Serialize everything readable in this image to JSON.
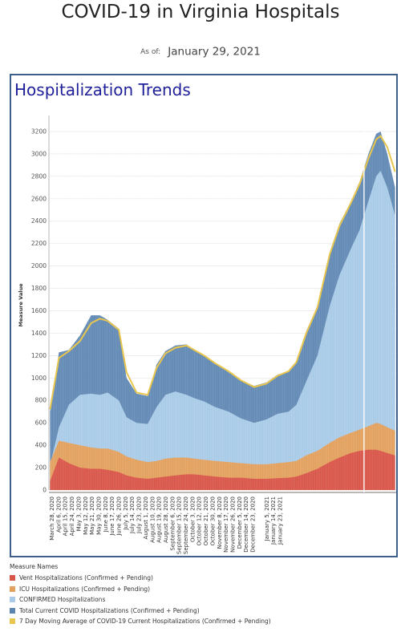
{
  "header": {
    "title": "COVID-19 in Virginia Hospitals",
    "as_of_label": "As of:",
    "as_of_date": "January 29, 2021"
  },
  "panel": {
    "title": "Hospitalization Trends"
  },
  "legend": {
    "title": "Measure Names",
    "items": [
      {
        "label": "Vent Hospitalizations (Confirmed + Pending)",
        "color": "#d9564a"
      },
      {
        "label": "ICU Hospitalizations (Confirmed + Pending)",
        "color": "#e3a15f"
      },
      {
        "label": "CONFIRMED Hospitalizations",
        "color": "#a9cbe8"
      },
      {
        "label": "Total Current COVID Hospitalizations (Confirmed + Pending)",
        "color": "#5b84b1"
      },
      {
        "label": "7 Day Moving Average of COVID-19 Current Hospitalizations (Confirmed + Pending)",
        "color": "#e9c74f"
      }
    ]
  },
  "chart_data": {
    "type": "area",
    "ylabel": "Measure Value",
    "ylim": [
      0,
      3300
    ],
    "yticks": [
      0,
      200,
      400,
      600,
      800,
      1000,
      1200,
      1400,
      1600,
      1800,
      2000,
      2200,
      2400,
      2600,
      2800,
      3000,
      3200
    ],
    "x_tick_labels": [
      "March 28, 2020",
      "April 6, 2020",
      "April 15, 2020",
      "April 24, 2020",
      "May 3, 2020",
      "May 12, 2020",
      "May 21, 2020",
      "May 30, 2020",
      "June 8, 2020",
      "June 17, 2020",
      "June 26, 2020",
      "July 5, 2020",
      "July 14, 2020",
      "July 23, 2020",
      "August 1, 2020",
      "August 10, 2020",
      "August 19, 2020",
      "August 28, 2020",
      "September 6, 2020",
      "September 15, 2020",
      "September 24, 2020",
      "October 3, 2020",
      "October 12, 2020",
      "October 21, 2020",
      "October 30, 2020",
      "November 8, 2020",
      "November 17, 2020",
      "November 26, 2020",
      "December 5, 2020",
      "December 14, 2020",
      "December 23, 2020",
      "January 5, 2021",
      "January 14, 2021",
      "January 23, 2021"
    ],
    "grid": true,
    "series": [
      {
        "name": "Total Current COVID Hospitalizations (Confirmed + Pending)",
        "x": [
          "2020-03-24",
          "2020-04-01",
          "2020-04-10",
          "2020-04-20",
          "2020-04-30",
          "2020-05-08",
          "2020-05-15",
          "2020-05-25",
          "2020-06-01",
          "2020-06-10",
          "2020-06-20",
          "2020-06-28",
          "2020-07-06",
          "2020-07-15",
          "2020-07-25",
          "2020-08-01",
          "2020-08-10",
          "2020-08-20",
          "2020-09-01",
          "2020-09-12",
          "2020-09-24",
          "2020-10-05",
          "2020-10-15",
          "2020-10-25",
          "2020-11-01",
          "2020-11-10",
          "2020-11-20",
          "2020-12-01",
          "2020-12-10",
          "2020-12-20",
          "2020-12-28",
          "2021-01-05",
          "2021-01-12",
          "2021-01-16",
          "2021-01-22",
          "2021-01-29"
        ],
        "values": [
          700,
          1230,
          1250,
          1380,
          1560,
          1560,
          1520,
          1440,
          1000,
          860,
          840,
          1120,
          1240,
          1290,
          1300,
          1250,
          1200,
          1130,
          1050,
          980,
          930,
          960,
          1030,
          1060,
          1150,
          1420,
          1640,
          2120,
          2380,
          2570,
          2750,
          3000,
          3180,
          3200,
          3000,
          2700
        ]
      },
      {
        "name": "CONFIRMED Hospitalizations",
        "x": [
          "2020-03-24",
          "2020-04-01",
          "2020-04-10",
          "2020-04-20",
          "2020-04-30",
          "2020-05-08",
          "2020-05-15",
          "2020-05-25",
          "2020-06-01",
          "2020-06-10",
          "2020-06-20",
          "2020-06-28",
          "2020-07-06",
          "2020-07-15",
          "2020-07-25",
          "2020-08-01",
          "2020-08-10",
          "2020-08-20",
          "2020-09-01",
          "2020-09-12",
          "2020-09-24",
          "2020-10-05",
          "2020-10-15",
          "2020-10-25",
          "2020-11-01",
          "2020-11-10",
          "2020-11-20",
          "2020-12-01",
          "2020-12-10",
          "2020-12-20",
          "2020-12-28",
          "2021-01-05",
          "2021-01-12",
          "2021-01-16",
          "2021-01-22",
          "2021-01-29"
        ],
        "values": [
          220,
          560,
          760,
          850,
          860,
          850,
          870,
          800,
          650,
          600,
          590,
          740,
          850,
          880,
          850,
          820,
          790,
          740,
          700,
          640,
          600,
          630,
          680,
          700,
          760,
          970,
          1200,
          1640,
          1920,
          2150,
          2320,
          2580,
          2800,
          2850,
          2700,
          2450
        ]
      },
      {
        "name": "ICU Hospitalizations (Confirmed + Pending)",
        "x": [
          "2020-03-24",
          "2020-04-01",
          "2020-04-10",
          "2020-04-20",
          "2020-04-30",
          "2020-05-08",
          "2020-05-15",
          "2020-05-25",
          "2020-06-01",
          "2020-06-10",
          "2020-06-20",
          "2020-06-28",
          "2020-07-06",
          "2020-07-15",
          "2020-07-25",
          "2020-08-01",
          "2020-08-10",
          "2020-08-20",
          "2020-09-01",
          "2020-09-12",
          "2020-09-24",
          "2020-10-05",
          "2020-10-15",
          "2020-10-25",
          "2020-11-01",
          "2020-11-10",
          "2020-11-20",
          "2020-12-01",
          "2020-12-10",
          "2020-12-20",
          "2020-12-28",
          "2021-01-05",
          "2021-01-12",
          "2021-01-16",
          "2021-01-22",
          "2021-01-29"
        ],
        "values": [
          250,
          440,
          420,
          400,
          380,
          370,
          370,
          340,
          300,
          270,
          250,
          260,
          280,
          290,
          290,
          280,
          270,
          260,
          250,
          240,
          230,
          230,
          240,
          250,
          260,
          310,
          350,
          420,
          470,
          510,
          540,
          570,
          600,
          590,
          560,
          530
        ]
      },
      {
        "name": "Vent Hospitalizations (Confirmed + Pending)",
        "x": [
          "2020-03-24",
          "2020-04-01",
          "2020-04-10",
          "2020-04-20",
          "2020-04-30",
          "2020-05-08",
          "2020-05-15",
          "2020-05-25",
          "2020-06-01",
          "2020-06-10",
          "2020-06-20",
          "2020-06-28",
          "2020-07-06",
          "2020-07-15",
          "2020-07-25",
          "2020-08-01",
          "2020-08-10",
          "2020-08-20",
          "2020-09-01",
          "2020-09-12",
          "2020-09-24",
          "2020-10-05",
          "2020-10-15",
          "2020-10-25",
          "2020-11-01",
          "2020-11-10",
          "2020-11-20",
          "2020-12-01",
          "2020-12-10",
          "2020-12-20",
          "2020-12-28",
          "2021-01-05",
          "2021-01-12",
          "2021-01-16",
          "2021-01-22",
          "2021-01-29"
        ],
        "values": [
          80,
          290,
          240,
          200,
          190,
          190,
          180,
          160,
          130,
          110,
          100,
          110,
          120,
          130,
          140,
          140,
          130,
          120,
          110,
          110,
          100,
          100,
          105,
          110,
          120,
          150,
          190,
          250,
          290,
          330,
          350,
          360,
          360,
          350,
          330,
          310
        ]
      },
      {
        "name": "7 Day Moving Average of COVID-19 Current Hospitalizations (Confirmed + Pending)",
        "x": [
          "2020-03-24",
          "2020-04-01",
          "2020-04-10",
          "2020-04-20",
          "2020-04-30",
          "2020-05-08",
          "2020-05-15",
          "2020-05-25",
          "2020-06-01",
          "2020-06-10",
          "2020-06-20",
          "2020-06-28",
          "2020-07-06",
          "2020-07-15",
          "2020-07-25",
          "2020-08-01",
          "2020-08-10",
          "2020-08-20",
          "2020-09-01",
          "2020-09-12",
          "2020-09-24",
          "2020-10-05",
          "2020-10-15",
          "2020-10-25",
          "2020-11-01",
          "2020-11-10",
          "2020-11-20",
          "2020-12-01",
          "2020-12-10",
          "2020-12-20",
          "2020-12-28",
          "2021-01-05",
          "2021-01-12",
          "2021-01-16",
          "2021-01-22",
          "2021-01-29"
        ],
        "values": [
          720,
          1180,
          1240,
          1330,
          1490,
          1530,
          1510,
          1430,
          1050,
          870,
          850,
          1090,
          1220,
          1270,
          1290,
          1250,
          1200,
          1130,
          1060,
          980,
          920,
          950,
          1020,
          1060,
          1140,
          1400,
          1630,
          2100,
          2360,
          2560,
          2730,
          2960,
          3130,
          3160,
          3060,
          2840
        ]
      }
    ]
  }
}
